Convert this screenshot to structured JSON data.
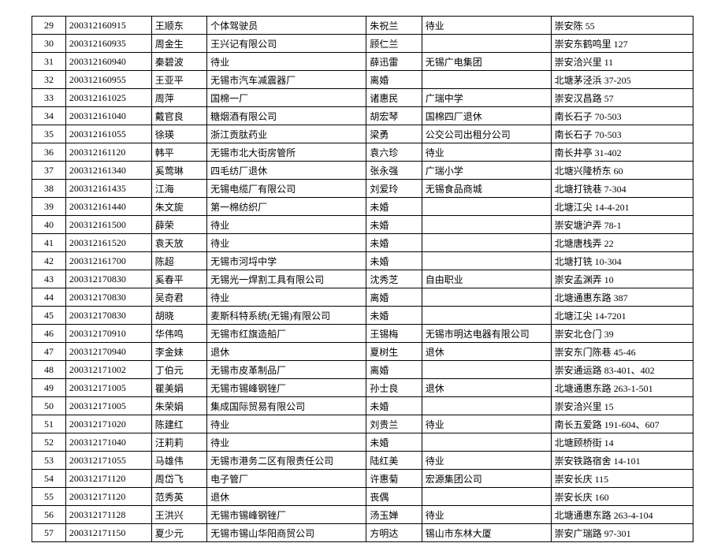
{
  "table": {
    "background_color": "#ffffff",
    "border_color": "#000000",
    "font_family": "SimSun",
    "font_size_pt": 9,
    "col_widths_pct": [
      3.5,
      11,
      7,
      22,
      7,
      18,
      20
    ],
    "rows": [
      [
        "29",
        "200312160915",
        "王顺东",
        "个体驾驶员",
        "朱祝兰",
        "待业",
        "崇安陈 55"
      ],
      [
        "30",
        "200312160935",
        "周金生",
        "王兴记有限公司",
        "顾仁兰",
        "",
        "崇安东鹤鸣里 127"
      ],
      [
        "31",
        "200312160940",
        "秦碧波",
        "待业",
        "薛迅雷",
        "无锡广电集团",
        "崇安洽兴里 11"
      ],
      [
        "32",
        "200312160955",
        "王亚平",
        "无锡市汽车减震器厂",
        "离婚",
        "",
        "北塘茅泾浜 37-205"
      ],
      [
        "33",
        "200312161025",
        "周萍",
        "国棉一厂",
        "诸惠民",
        "广瑞中学",
        "崇安汉昌路 57"
      ],
      [
        "34",
        "200312161040",
        "戴官良",
        "糖烟酒有限公司",
        "胡宏琴",
        "国棉四厂退休",
        "南长石子 70-503"
      ],
      [
        "35",
        "200312161055",
        "徐瑛",
        "浙江贡肽药业",
        "梁勇",
        "公交公司出租分公司",
        "南长石子 70-503"
      ],
      [
        "36",
        "200312161120",
        "韩平",
        "无锡市北大街房管所",
        "袁六珍",
        "待业",
        "南长井亭 31-402"
      ],
      [
        "37",
        "200312161340",
        "奚莺琳",
        "四毛纺厂退休",
        "张永强",
        "广瑞小学",
        "北塘兴隆桥东 60"
      ],
      [
        "38",
        "200312161435",
        "江海",
        "无锡电缆厂有限公司",
        "刘爱玲",
        "无锡食品商城",
        "北塘打铣巷 7-304"
      ],
      [
        "39",
        "200312161440",
        "朱文旎",
        "第一棉纺织厂",
        "未婚",
        "",
        "北塘江尖 14-4-201"
      ],
      [
        "40",
        "200312161500",
        "薛荣",
        "待业",
        "未婚",
        "",
        "崇安塘沪弄 78-1"
      ],
      [
        "41",
        "200312161520",
        "袁天放",
        "待业",
        "未婚",
        "",
        "北塘唐栈弄 22"
      ],
      [
        "42",
        "200312161700",
        "陈超",
        "无锡市河埒中学",
        "未婚",
        "",
        "北塘打铣 10-304"
      ],
      [
        "43",
        "200312170830",
        "奚春平",
        "无锡光一焊割工具有限公司",
        "沈秀芝",
        "自由职业",
        "崇安孟渊弄 10"
      ],
      [
        "44",
        "200312170830",
        "吴奇君",
        "待业",
        "离婚",
        "",
        "北塘通惠东路 387"
      ],
      [
        "45",
        "200312170830",
        "胡晓",
        "麦斯科特系统(无锡)有限公司",
        "未婚",
        "",
        "北塘江尖 14-7201"
      ],
      [
        "46",
        "200312170910",
        "华伟鸣",
        "无锡市红旗造船厂",
        "王锡梅",
        "无锡市明达电器有限公司",
        "崇安北仓门 39"
      ],
      [
        "47",
        "200312170940",
        "李金妹",
        "退休",
        "夏树生",
        "退休",
        "崇安东门陈巷 45-46"
      ],
      [
        "48",
        "200312171002",
        "丁伯元",
        "无锡市皮革制品厂",
        "离婚",
        "",
        "崇安通运路 83-401、402"
      ],
      [
        "49",
        "200312171005",
        "瞿美娟",
        "无锡市锡峰钢锉厂",
        "孙士良",
        "退休",
        "北塘通惠东路 263-1-501"
      ],
      [
        "50",
        "200312171005",
        "朱荣娟",
        "集成国际贸易有限公司",
        "未婚",
        "",
        "崇安洽兴里 15"
      ],
      [
        "51",
        "200312171020",
        "陈建红",
        "待业",
        "刘贵兰",
        "待业",
        "南长五爱路 191-604、607"
      ],
      [
        "52",
        "200312171040",
        "汪莉莉",
        "待业",
        "未婚",
        "",
        "北塘顾桥街 14"
      ],
      [
        "53",
        "200312171055",
        "马雄伟",
        "无锡市港务二区有限责任公司",
        "陆红美",
        "待业",
        "崇安铁路宿舍 14-101"
      ],
      [
        "54",
        "200312171120",
        "周岱飞",
        "电子管厂",
        "许惠菊",
        "宏源集团公司",
        "崇安长庆 115"
      ],
      [
        "55",
        "200312171120",
        "范秀英",
        "退休",
        "丧偶",
        "",
        "崇安长庆 160"
      ],
      [
        "56",
        "200312171128",
        "王洪兴",
        "无锡市锡峰钢锉厂",
        "汤玉婵",
        "待业",
        "北塘通惠东路 263-4-104"
      ],
      [
        "57",
        "200312171150",
        "夏少元",
        "无锡市锡山华阳商贸公司",
        "方明达",
        "锡山市东林大厦",
        "崇安广瑞路 97-301"
      ]
    ]
  }
}
